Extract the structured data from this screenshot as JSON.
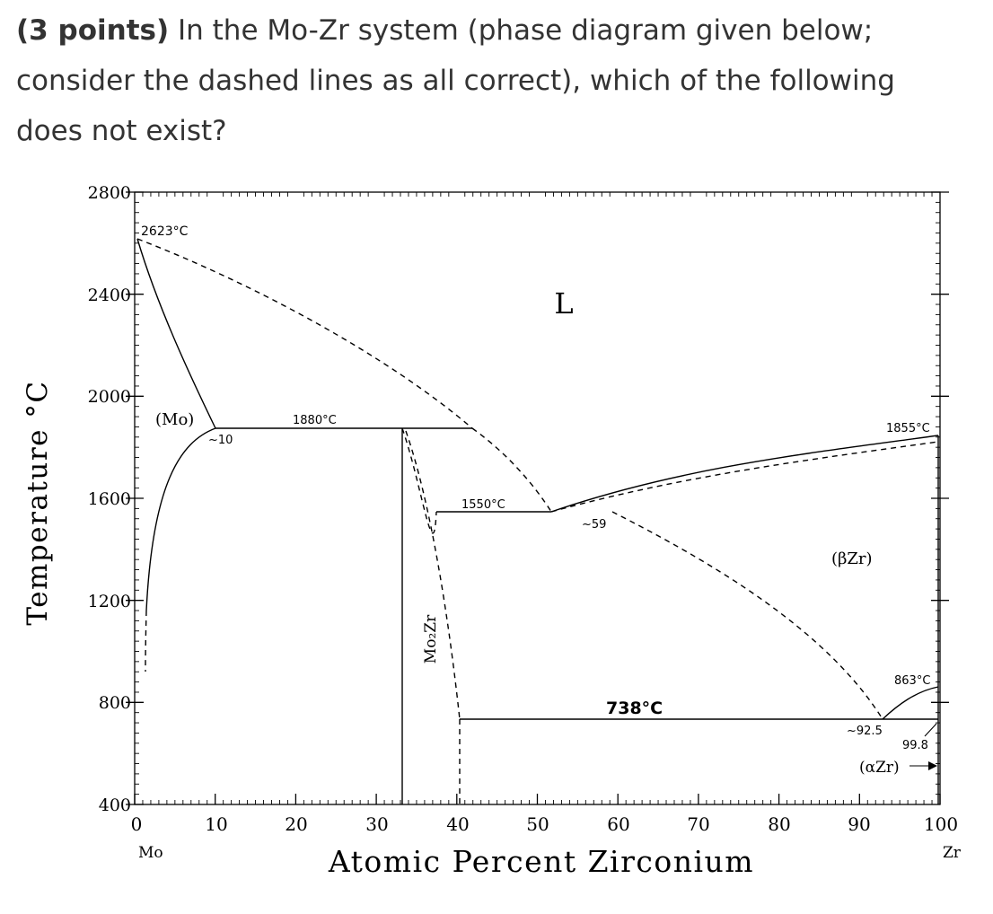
{
  "question": {
    "points": "(3 points)",
    "text": " In the Mo-Zr system (phase diagram given below; consider the dashed lines as all correct), which of the following does not exist?"
  },
  "diagram": {
    "y_axis_title": "Temperature °C",
    "x_axis_title": "Atomic Percent Zirconium",
    "x_ticks": [
      "0",
      "10",
      "20",
      "30",
      "40",
      "50",
      "60",
      "70",
      "80",
      "90",
      "100"
    ],
    "y_ticks": [
      "400",
      "800",
      "1200",
      "1600",
      "2000",
      "2400",
      "2800"
    ],
    "x_end_left": "Mo",
    "x_end_right": "Zr",
    "phases": {
      "liquid": "L",
      "mo": "(Mo)",
      "beta_zr": "(βZr)",
      "alpha_zr": "(αZr)",
      "compound": "Mo₂Zr"
    },
    "annotations": {
      "mo_melting": "2623°C",
      "eutectic_1880": "1880°C",
      "comp_10": "~10",
      "peritectic_1550": "1550°C",
      "comp_59": "~59",
      "zr_melting": "1855°C",
      "eutectoid_738": "738°C",
      "comp_92_5": "~92.5",
      "comp_99_8": "99.8",
      "zr_transition": "863°C"
    }
  }
}
